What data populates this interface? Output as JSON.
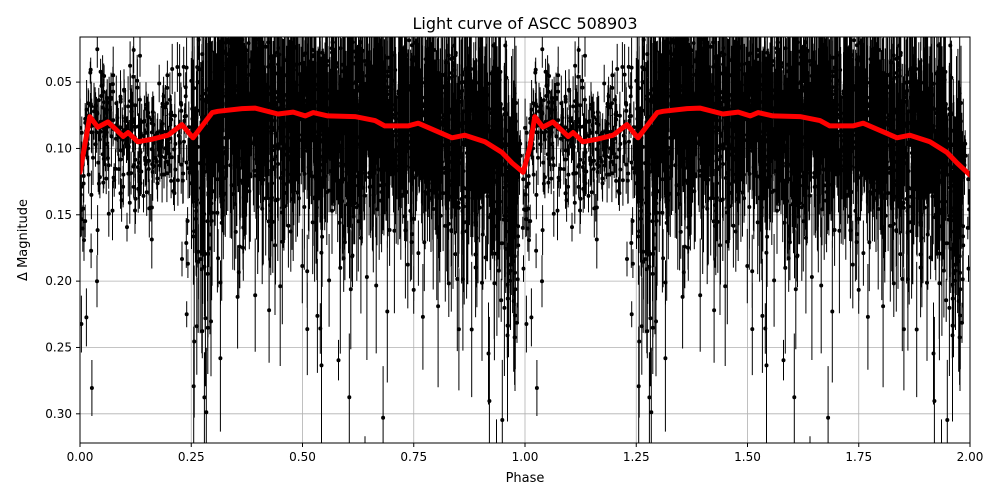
{
  "chart_data": {
    "type": "scatter",
    "title": "Light curve of ASCC 508903",
    "xlabel": "Phase",
    "ylabel": "Δ Magnitude",
    "xlim": [
      0,
      2
    ],
    "ylim": [
      0.322,
      0.016
    ],
    "y_inverted": true,
    "grid": true,
    "legend": "none",
    "x_ticks": [
      "0.00",
      "0.25",
      "0.50",
      "0.75",
      "1.00",
      "1.25",
      "1.50",
      "1.75",
      "2.00"
    ],
    "x_tick_values": [
      0,
      0.25,
      0.5,
      0.75,
      1.0,
      1.25,
      1.5,
      1.75,
      2.0
    ],
    "y_ticks": [
      "0.05",
      "0.10",
      "0.15",
      "0.20",
      "0.25",
      "0.30"
    ],
    "y_tick_values": [
      0.05,
      0.1,
      0.15,
      0.2,
      0.25,
      0.3
    ],
    "colors": {
      "points": "#000000",
      "error_bars": "#000000",
      "binned_curve": "#ff0000",
      "grid": "#b0b0b0"
    },
    "series": [
      {
        "kind": "points-with-error-bars",
        "color": "#000000"
      },
      {
        "kind": "binned-mean-line",
        "color": "#ff0000",
        "x": [
          0,
          0.022,
          0.04,
          0.063,
          0.097,
          0.108,
          0.13,
          0.162,
          0.198,
          0.229,
          0.254,
          0.297,
          0.31,
          0.364,
          0.393,
          0.445,
          0.479,
          0.506,
          0.524,
          0.557,
          0.618,
          0.663,
          0.685,
          0.737,
          0.76,
          0.836,
          0.865,
          0.91,
          0.948,
          0.971,
          0.996,
          1.011,
          1.022,
          1.04,
          1.063,
          1.097,
          1.108,
          1.13,
          1.162,
          1.198,
          1.229,
          1.254,
          1.297,
          1.31,
          1.364,
          1.393,
          1.445,
          1.479,
          1.506,
          1.524,
          1.557,
          1.618,
          1.663,
          1.685,
          1.737,
          1.76,
          1.836,
          1.865,
          1.91,
          1.948,
          1.971,
          2.0
        ],
        "y": [
          0.118,
          0.076,
          0.084,
          0.08,
          0.091,
          0.088,
          0.095,
          0.093,
          0.09,
          0.082,
          0.092,
          0.073,
          0.072,
          0.07,
          0.0696,
          0.074,
          0.0726,
          0.0755,
          0.073,
          0.0755,
          0.076,
          0.079,
          0.083,
          0.083,
          0.081,
          0.092,
          0.09,
          0.095,
          0.103,
          0.111,
          0.118,
          0.099,
          0.076,
          0.084,
          0.08,
          0.091,
          0.088,
          0.095,
          0.093,
          0.09,
          0.082,
          0.092,
          0.073,
          0.072,
          0.07,
          0.0696,
          0.074,
          0.0726,
          0.0755,
          0.073,
          0.0755,
          0.076,
          0.079,
          0.083,
          0.083,
          0.081,
          0.092,
          0.09,
          0.095,
          0.103,
          0.111,
          0.12
        ]
      }
    ]
  }
}
